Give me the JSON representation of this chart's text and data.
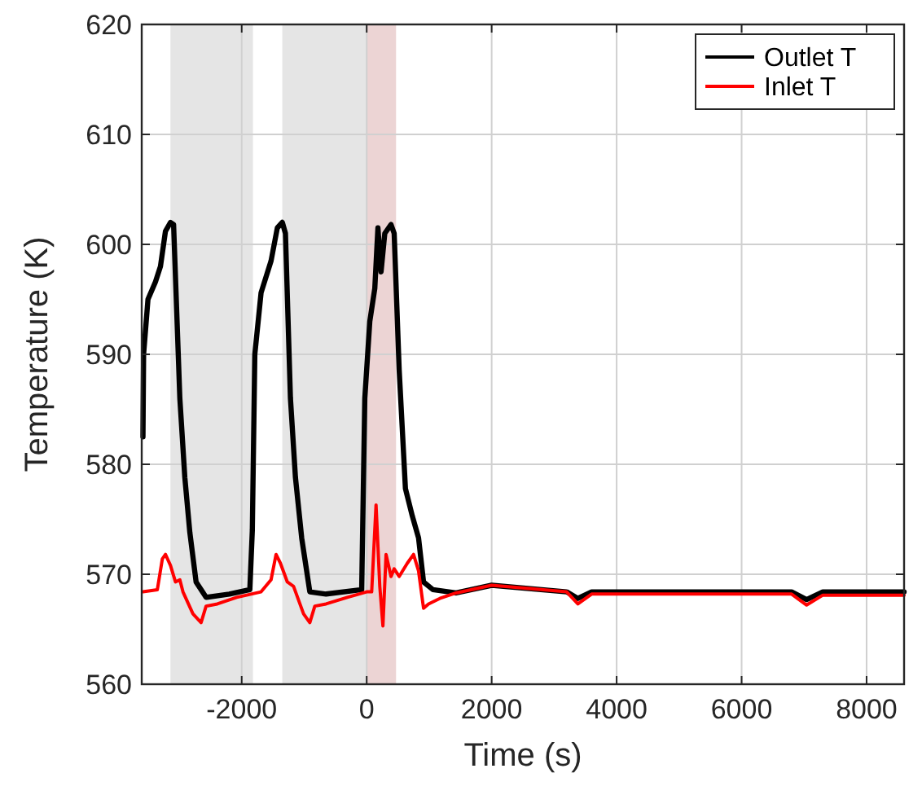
{
  "chart_data": {
    "type": "line",
    "xlabel": "Time (s)",
    "ylabel": "Temperature (K)",
    "xlim": [
      -3600,
      8600
    ],
    "ylim": [
      560,
      620
    ],
    "xticks": [
      -2000,
      0,
      2000,
      4000,
      6000,
      8000
    ],
    "yticks": [
      560,
      570,
      580,
      590,
      600,
      610,
      620
    ],
    "grid": true,
    "legend": "top right",
    "line_style": "solid",
    "marker": "none",
    "bands": [
      {
        "axis": "x",
        "from": -3140,
        "to": -1820,
        "color": "#e5e5e5"
      },
      {
        "axis": "x",
        "from": -1350,
        "to": 0,
        "color": "#e5e5e5"
      },
      {
        "axis": "x",
        "from": 0,
        "to": 470,
        "color": "#ecd4d4"
      }
    ],
    "series": [
      {
        "name": "Outlet T",
        "color": "#000000",
        "x": [
          -3580,
          -3570,
          -3500,
          -3380,
          -3300,
          -3220,
          -3140,
          -3090,
          -2990,
          -2910,
          -2830,
          -2730,
          -2570,
          -2200,
          -1870,
          -1830,
          -1790,
          -1690,
          -1530,
          -1430,
          -1350,
          -1300,
          -1220,
          -1140,
          -1040,
          -910,
          -650,
          -80,
          -30,
          50,
          130,
          180,
          230,
          290,
          390,
          440,
          520,
          620,
          730,
          830,
          910,
          1060,
          1430,
          2000,
          3200,
          3380,
          3600,
          6800,
          7040,
          7300,
          8600
        ],
        "values": [
          582.5,
          590,
          595,
          596.6,
          598,
          601.2,
          602,
          601.8,
          586,
          578.8,
          573.8,
          569.3,
          567.9,
          568.2,
          568.6,
          574,
          590,
          595.6,
          598.5,
          601.5,
          602,
          601,
          586,
          578.8,
          573.3,
          568.4,
          568.2,
          568.6,
          586,
          593,
          596,
          601.5,
          597.5,
          601,
          601.8,
          601,
          588.6,
          577.8,
          575.3,
          573.3,
          569.3,
          568.6,
          568.3,
          569,
          568.4,
          567.8,
          568.4,
          568.4,
          567.7,
          568.4,
          568.4
        ]
      },
      {
        "name": "Inlet T",
        "color": "#ff0000",
        "x": [
          -3580,
          -3350,
          -3270,
          -3220,
          -3140,
          -3060,
          -2990,
          -2940,
          -2780,
          -2650,
          -2570,
          -2390,
          -2080,
          -1690,
          -1530,
          -1450,
          -1380,
          -1270,
          -1170,
          -1010,
          -910,
          -830,
          -650,
          -310,
          0,
          80,
          150,
          210,
          260,
          310,
          390,
          440,
          520,
          650,
          750,
          830,
          910,
          990,
          1170,
          1430,
          2000,
          3200,
          3380,
          3600,
          6800,
          7040,
          7300,
          8600
        ],
        "values": [
          568.4,
          568.6,
          571.4,
          571.8,
          570.8,
          569.3,
          569.5,
          568.4,
          566.4,
          565.6,
          567.1,
          567.3,
          567.9,
          568.4,
          569.5,
          571.8,
          571,
          569.3,
          568.9,
          566.4,
          565.6,
          567.1,
          567.3,
          567.9,
          568.4,
          568.4,
          576.3,
          568.9,
          565.3,
          571.8,
          569.8,
          570.5,
          569.8,
          571,
          571.8,
          570.3,
          566.9,
          567.3,
          567.8,
          568.3,
          569,
          568.4,
          567.3,
          568.2,
          568.2,
          567.2,
          568.1,
          568.1
        ]
      }
    ]
  }
}
